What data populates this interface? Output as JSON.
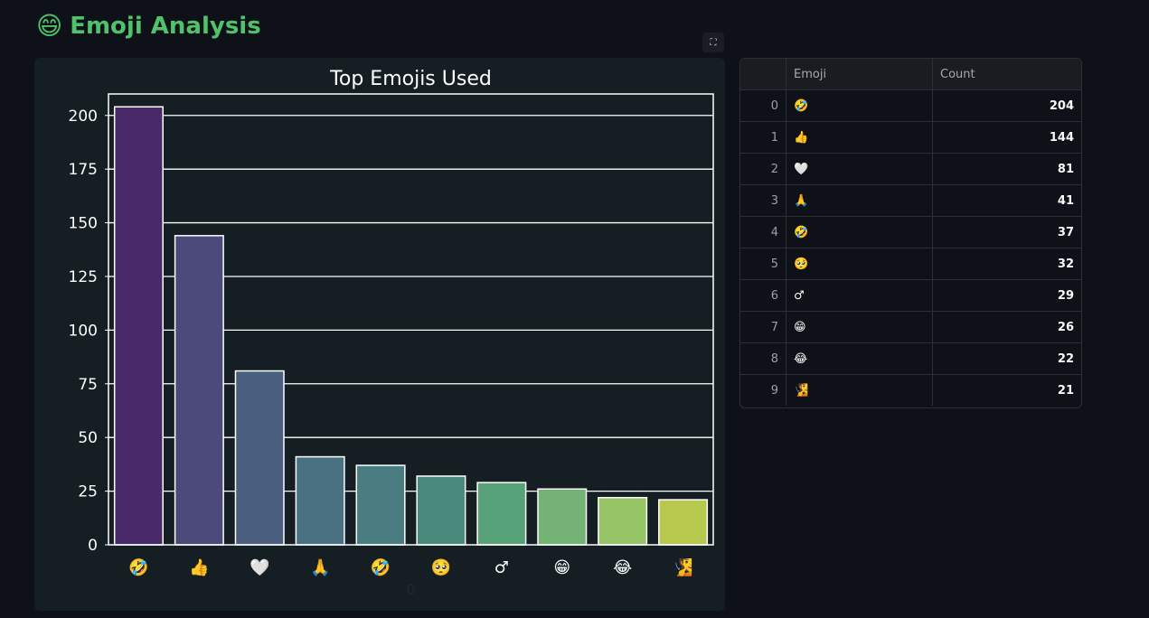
{
  "header": {
    "icon": "😄",
    "title": "Emoji Analysis"
  },
  "toolbar": {
    "fullscreen_icon": "⛶"
  },
  "table": {
    "columns": [
      "",
      "Emoji",
      "Count"
    ],
    "rows": [
      {
        "index": "0",
        "emoji": "🤣",
        "count": "204"
      },
      {
        "index": "1",
        "emoji": "👍",
        "count": "144"
      },
      {
        "index": "2",
        "emoji": "🤍",
        "count": "81"
      },
      {
        "index": "3",
        "emoji": "🙏",
        "count": "41"
      },
      {
        "index": "4",
        "emoji": "🤣",
        "count": "37"
      },
      {
        "index": "5",
        "emoji": "🥺",
        "count": "32"
      },
      {
        "index": "6",
        "emoji": "♂",
        "count": "29"
      },
      {
        "index": "7",
        "emoji": "😁",
        "count": "26"
      },
      {
        "index": "8",
        "emoji": "😂",
        "count": "22"
      },
      {
        "index": "9",
        "emoji": "🧏",
        "count": "21"
      }
    ]
  },
  "chart_data": {
    "type": "bar",
    "title": "Top Emojis Used",
    "xlabel": "0",
    "ylabel": "",
    "categories": [
      "🤣",
      "👍",
      "🤍",
      "🙏",
      "🤣",
      "🥺",
      "♂",
      "😁",
      "😂",
      "🧏"
    ],
    "values": [
      204,
      144,
      81,
      41,
      37,
      32,
      29,
      26,
      22,
      21
    ],
    "ylim": [
      0,
      210
    ],
    "yticks": [
      0,
      25,
      50,
      75,
      100,
      125,
      150,
      175,
      200
    ],
    "grid": true,
    "colors": [
      "#482a6b",
      "#4c4a7a",
      "#4a5e80",
      "#4a7182",
      "#4a7d82",
      "#4a8a7c",
      "#58a27a",
      "#75b276",
      "#98c468",
      "#b7c84e"
    ]
  }
}
